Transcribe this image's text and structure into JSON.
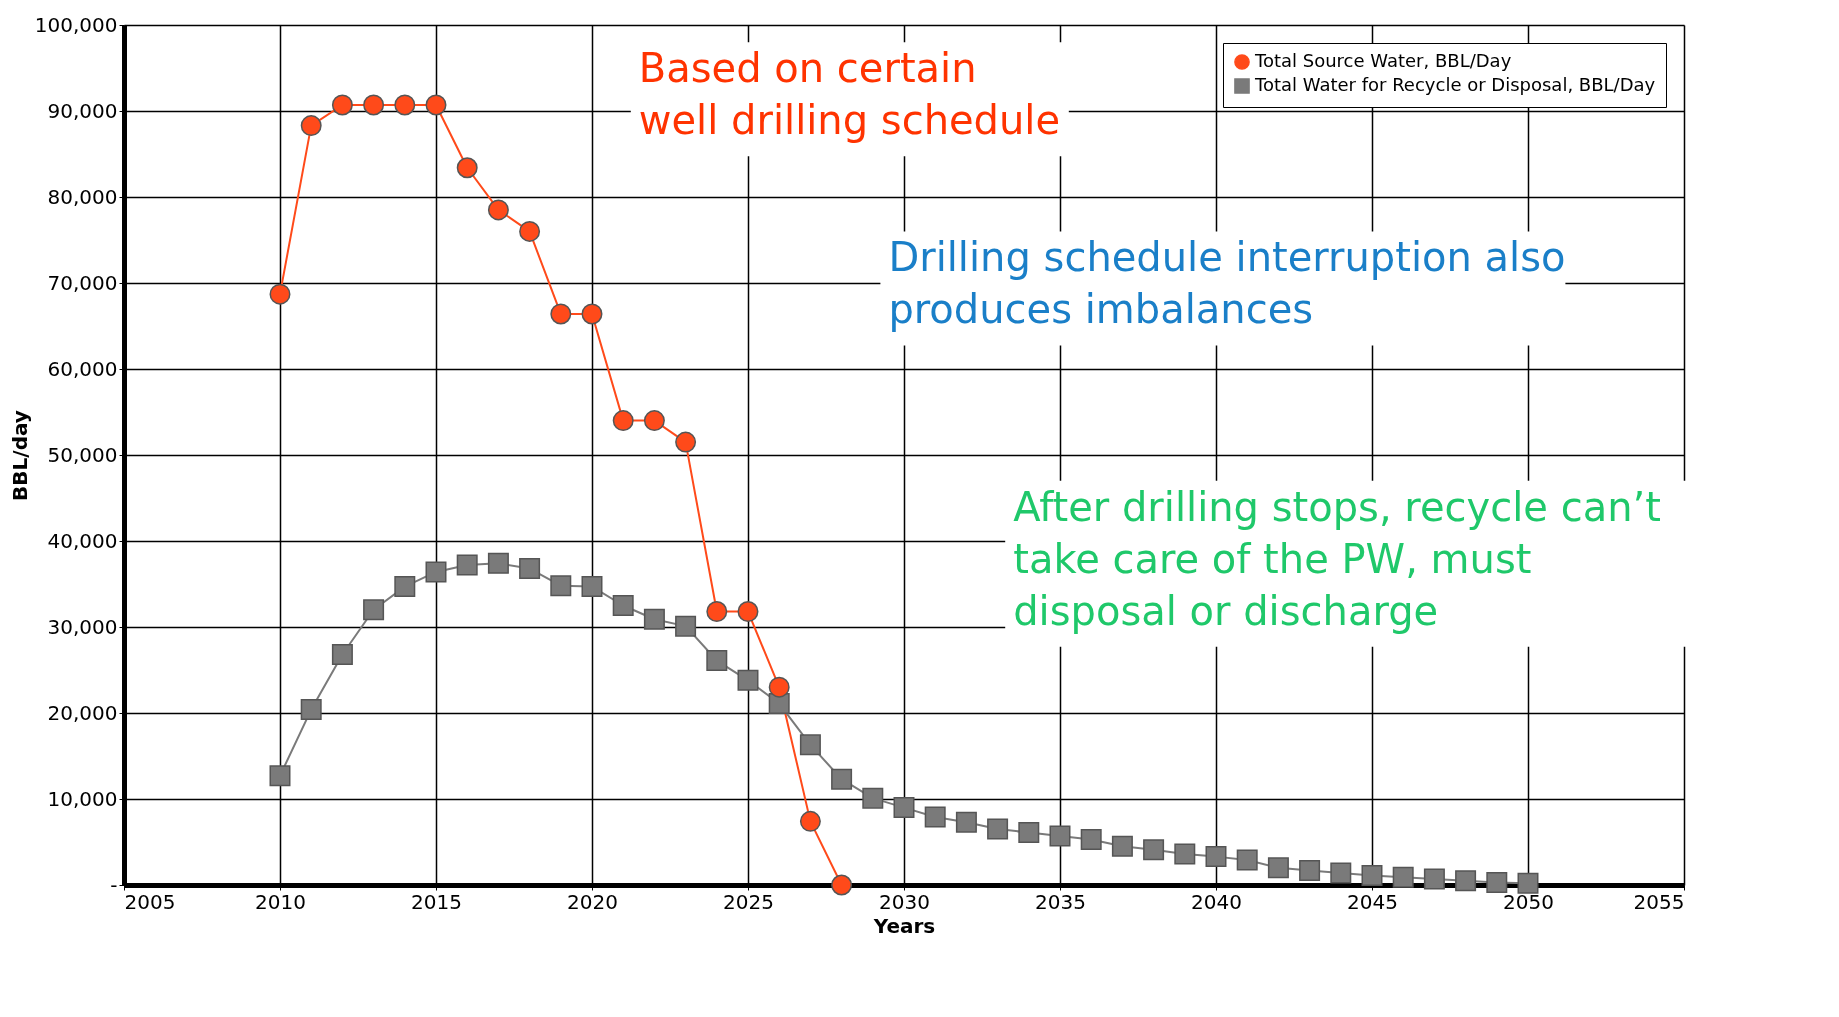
{
  "chart_data": {
    "type": "line",
    "xlabel": "Years",
    "ylabel": "BBL/day",
    "x": [
      2010,
      2011,
      2012,
      2013,
      2014,
      2015,
      2016,
      2017,
      2018,
      2019,
      2020,
      2021,
      2022,
      2023,
      2024,
      2025,
      2026,
      2027,
      2028,
      2029,
      2030,
      2031,
      2032,
      2033,
      2034,
      2035,
      2036,
      2037,
      2038,
      2039,
      2040,
      2041,
      2042,
      2043,
      2044,
      2045,
      2046,
      2047,
      2048,
      2049,
      2050
    ],
    "series": [
      {
        "name": "Total Source Water, BBL/Day",
        "color": "#ff4a1a",
        "marker": "circle",
        "x": [
          2010,
          2011,
          2012,
          2013,
          2014,
          2015,
          2016,
          2017,
          2018,
          2019,
          2020,
          2021,
          2022,
          2023,
          2024,
          2025,
          2026,
          2027,
          2028
        ],
        "values": [
          68700,
          88300,
          90700,
          90700,
          90700,
          90700,
          83400,
          78500,
          76000,
          66400,
          66400,
          54000,
          54000,
          51500,
          31800,
          31800,
          23000,
          7400,
          0
        ]
      },
      {
        "name": "Total Water for Recycle or Disposal, BBL/Day",
        "color": "#7a7a7a",
        "marker": "square",
        "values": [
          12700,
          20400,
          26800,
          32000,
          34700,
          36400,
          37200,
          37400,
          36800,
          34800,
          34700,
          32500,
          30900,
          30100,
          26100,
          23800,
          21100,
          16300,
          12300,
          10100,
          9000,
          7900,
          7300,
          6500,
          6100,
          5700,
          5300,
          4500,
          4100,
          3600,
          3300,
          2900,
          2000,
          1700,
          1400,
          1100,
          900,
          700,
          500,
          300,
          200
        ]
      }
    ],
    "xlim": [
      2005,
      2055
    ],
    "xticks": [
      2005,
      2010,
      2015,
      2020,
      2025,
      2030,
      2035,
      2040,
      2045,
      2050,
      2055
    ],
    "ylim": [
      0,
      100000
    ],
    "yticks": [
      {
        "value": 0,
        "label": "-"
      },
      {
        "value": 10000,
        "label": "10,000"
      },
      {
        "value": 20000,
        "label": "20,000"
      },
      {
        "value": 30000,
        "label": "30,000"
      },
      {
        "value": 40000,
        "label": "40,000"
      },
      {
        "value": 50000,
        "label": "50,000"
      },
      {
        "value": 60000,
        "label": "60,000"
      },
      {
        "value": 70000,
        "label": "70,000"
      },
      {
        "value": 80000,
        "label": "80,000"
      },
      {
        "value": 90000,
        "label": "90,000"
      },
      {
        "value": 100000,
        "label": "100,000"
      }
    ],
    "grid": true,
    "legend": "top right",
    "annotations": [
      "Based on certain\nwell drilling schedule",
      "Drilling schedule interruption also\nproduces imbalances",
      "After drilling stops, recycle can’t\ntake care of the PW, must\ndisposal or discharge"
    ]
  }
}
